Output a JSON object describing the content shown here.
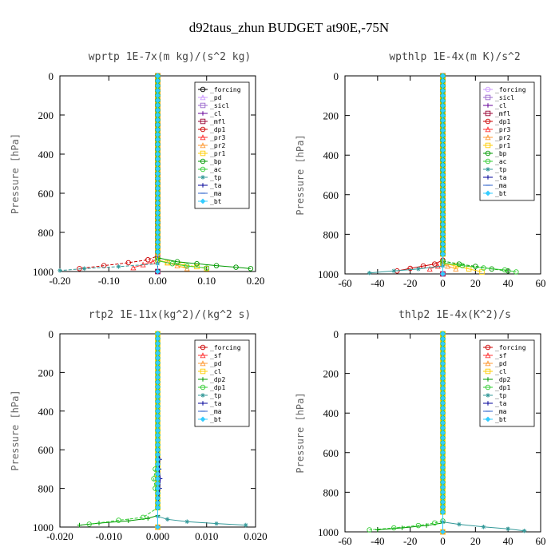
{
  "figure": {
    "title": "d92taus_zhun  BUDGET at90E,-75N"
  },
  "chart_data": [
    {
      "type": "line",
      "title": "wprtp  1E-7x(m kg)/(s^2 kg)",
      "ylabel": "Pressure [hPa]",
      "xlim": [
        -0.2,
        0.2
      ],
      "ylim": [
        1000,
        0
      ],
      "xticks": [
        "-0.20",
        "-0.10",
        "0.00",
        "0.10",
        "0.20"
      ],
      "yticks": [
        "0",
        "200",
        "400",
        "600",
        "800",
        "1000"
      ],
      "legend_location": "top-right",
      "grid": false,
      "series": [
        {
          "name": "_forcing",
          "color": "#000000",
          "marker": "circle",
          "x": [
            0,
            0,
            0,
            0,
            0
          ],
          "y": [
            0,
            250,
            500,
            750,
            1000
          ]
        },
        {
          "name": "_pd",
          "color": "#cc99ff",
          "marker": "triangle",
          "x": [
            0,
            0,
            0,
            0,
            0
          ],
          "y": [
            0,
            250,
            500,
            750,
            1000
          ]
        },
        {
          "name": "_sicl",
          "color": "#9966cc",
          "marker": "square",
          "x": [
            0,
            0,
            0,
            0,
            0
          ],
          "y": [
            0,
            250,
            500,
            750,
            1000
          ]
        },
        {
          "name": "_cl",
          "color": "#660099",
          "marker": "plus",
          "x": [
            0,
            0,
            0,
            0,
            0
          ],
          "y": [
            0,
            250,
            500,
            750,
            1000
          ]
        },
        {
          "name": "_mfl",
          "color": "#990033",
          "marker": "square",
          "x": [
            0,
            0,
            0,
            0,
            0
          ],
          "y": [
            0,
            250,
            500,
            750,
            1000
          ]
        },
        {
          "name": "_dp1",
          "color": "#cc0000",
          "marker": "circle",
          "x": [
            0,
            0,
            -0.02,
            -0.06,
            -0.11,
            -0.16
          ],
          "y": [
            0,
            920,
            940,
            955,
            970,
            985
          ]
        },
        {
          "name": "_pr3",
          "color": "#ff3333",
          "marker": "triangle",
          "x": [
            0,
            -0.01,
            -0.03,
            -0.05
          ],
          "y": [
            930,
            950,
            965,
            980
          ]
        },
        {
          "name": "_pr2",
          "color": "#ff9933",
          "marker": "triangle",
          "x": [
            0,
            0.02,
            0.04,
            0.06
          ],
          "y": [
            940,
            955,
            970,
            985
          ]
        },
        {
          "name": "_pr1",
          "color": "#ffcc00",
          "marker": "square",
          "x": [
            0,
            0.02,
            0.05,
            0.08,
            0.1
          ],
          "y": [
            940,
            955,
            965,
            975,
            985
          ]
        },
        {
          "name": "_bp",
          "color": "#009900",
          "marker": "circle",
          "x": [
            0,
            0.04,
            0.08,
            0.12,
            0.16,
            0.19
          ],
          "y": [
            930,
            950,
            960,
            970,
            978,
            985
          ]
        },
        {
          "name": "_ac",
          "color": "#33cc33",
          "marker": "circle",
          "x": [
            0,
            0.03,
            0.06,
            0.1
          ],
          "y": [
            945,
            960,
            972,
            982
          ]
        },
        {
          "name": "_tp",
          "color": "#339999",
          "marker": "star",
          "x": [
            0,
            -0.08,
            -0.15,
            -0.2
          ],
          "y": [
            960,
            975,
            985,
            995
          ]
        },
        {
          "name": "_ta",
          "color": "#000099",
          "marker": "plus",
          "x": [
            0,
            0,
            0,
            0
          ],
          "y": [
            0,
            500,
            900,
            1000
          ]
        },
        {
          "name": "_ma",
          "color": "#3366cc",
          "marker": "dash",
          "x": [
            0,
            0,
            0,
            0
          ],
          "y": [
            0,
            500,
            900,
            1000
          ]
        },
        {
          "name": "_bt",
          "color": "#33ccff",
          "marker": "diamond",
          "x": [
            0,
            0,
            0,
            0
          ],
          "y": [
            0,
            500,
            900,
            1000
          ]
        }
      ]
    },
    {
      "type": "line",
      "title": "wpthlp  1E-4x(m K)/s^2",
      "ylabel": "Pressure [hPa]",
      "xlim": [
        -60,
        60
      ],
      "ylim": [
        1000,
        0
      ],
      "xticks": [
        "-60",
        "-40",
        "-20",
        "0",
        "20",
        "40",
        "60"
      ],
      "yticks": [
        "0",
        "200",
        "400",
        "600",
        "800",
        "1000"
      ],
      "legend_location": "top-right",
      "grid": false,
      "series": [
        {
          "name": "_forcing",
          "color": "#cc99ff",
          "marker": "circle",
          "x": [
            0,
            0,
            0,
            0,
            0
          ],
          "y": [
            0,
            250,
            500,
            750,
            1000
          ]
        },
        {
          "name": "_sicl",
          "color": "#9966cc",
          "marker": "square",
          "x": [
            0,
            0,
            0,
            0,
            0
          ],
          "y": [
            0,
            250,
            500,
            750,
            1000
          ]
        },
        {
          "name": "_cl",
          "color": "#660099",
          "marker": "plus",
          "x": [
            0,
            0,
            0,
            0,
            0
          ],
          "y": [
            0,
            250,
            500,
            750,
            1000
          ]
        },
        {
          "name": "_mfl",
          "color": "#990033",
          "marker": "square",
          "x": [
            0,
            0,
            0,
            0,
            0
          ],
          "y": [
            0,
            250,
            500,
            750,
            1000
          ]
        },
        {
          "name": "_dp1",
          "color": "#cc0000",
          "marker": "circle",
          "x": [
            0,
            -5,
            -12,
            -20,
            -28
          ],
          "y": [
            930,
            950,
            960,
            972,
            985
          ]
        },
        {
          "name": "_pr3",
          "color": "#ff3333",
          "marker": "triangle",
          "x": [
            0,
            -3,
            -8
          ],
          "y": [
            945,
            960,
            975
          ]
        },
        {
          "name": "_pr2",
          "color": "#ff9933",
          "marker": "triangle",
          "x": [
            0,
            3,
            8
          ],
          "y": [
            945,
            960,
            975
          ]
        },
        {
          "name": "_pr1",
          "color": "#ffcc00",
          "marker": "square",
          "x": [
            0,
            8,
            16,
            24
          ],
          "y": [
            945,
            960,
            975,
            990
          ]
        },
        {
          "name": "_bp",
          "color": "#009900",
          "marker": "circle",
          "x": [
            0,
            10,
            20,
            30,
            40
          ],
          "y": [
            935,
            950,
            962,
            975,
            985
          ]
        },
        {
          "name": "_ac",
          "color": "#33cc33",
          "marker": "circle",
          "x": [
            0,
            12,
            25,
            38,
            45
          ],
          "y": [
            945,
            958,
            970,
            980,
            990
          ]
        },
        {
          "name": "_tp",
          "color": "#339999",
          "marker": "star",
          "x": [
            0,
            -15,
            -30,
            -45
          ],
          "y": [
            960,
            975,
            985,
            995
          ]
        },
        {
          "name": "_ta",
          "color": "#000099",
          "marker": "plus",
          "x": [
            0,
            0,
            0,
            0
          ],
          "y": [
            0,
            500,
            900,
            1000
          ]
        },
        {
          "name": "_ma",
          "color": "#3366cc",
          "marker": "dash",
          "x": [
            0,
            0,
            0,
            0
          ],
          "y": [
            0,
            500,
            900,
            1000
          ]
        },
        {
          "name": "_bt",
          "color": "#33ccff",
          "marker": "diamond",
          "x": [
            0,
            0,
            0,
            0
          ],
          "y": [
            0,
            500,
            900,
            1000
          ]
        }
      ]
    },
    {
      "type": "line",
      "title": "rtp2  1E-11x(kg^2)/(kg^2 s)",
      "ylabel": "Pressure [hPa]",
      "xlim": [
        -0.02,
        0.02
      ],
      "ylim": [
        1000,
        0
      ],
      "xticks": [
        "-0.020",
        "-0.010",
        "0.000",
        "0.010",
        "0.020"
      ],
      "yticks": [
        "0",
        "200",
        "400",
        "600",
        "800",
        "1000"
      ],
      "legend_location": "top-right",
      "grid": false,
      "series": [
        {
          "name": "_forcing",
          "color": "#cc0000",
          "marker": "circle",
          "x": [
            0,
            0,
            0,
            0,
            0
          ],
          "y": [
            0,
            250,
            500,
            750,
            1000
          ]
        },
        {
          "name": "_sf",
          "color": "#ff3333",
          "marker": "triangle",
          "x": [
            0,
            0,
            0,
            0,
            0
          ],
          "y": [
            0,
            250,
            500,
            750,
            1000
          ]
        },
        {
          "name": "_pd",
          "color": "#ff9933",
          "marker": "triangle",
          "x": [
            0,
            0,
            0,
            0
          ],
          "y": [
            0,
            500,
            900,
            1000
          ]
        },
        {
          "name": "_cl",
          "color": "#ffcc00",
          "marker": "square",
          "x": [
            0,
            0,
            0,
            0
          ],
          "y": [
            0,
            500,
            900,
            1000
          ]
        },
        {
          "name": "_dp2",
          "color": "#009900",
          "marker": "plus",
          "x": [
            0,
            -0.002,
            -0.006,
            -0.012,
            -0.016
          ],
          "y": [
            940,
            955,
            968,
            980,
            990
          ]
        },
        {
          "name": "_dp1",
          "color": "#33cc33",
          "marker": "circle",
          "x": [
            0,
            0,
            -0.0005,
            -0.0008,
            -0.0005,
            0,
            -0.003,
            -0.008,
            -0.014
          ],
          "y": [
            600,
            650,
            700,
            750,
            800,
            900,
            950,
            965,
            985
          ]
        },
        {
          "name": "_tp",
          "color": "#339999",
          "marker": "star",
          "x": [
            0,
            0.002,
            0.006,
            0.012,
            0.018
          ],
          "y": [
            945,
            960,
            972,
            982,
            990
          ]
        },
        {
          "name": "_ta",
          "color": "#000099",
          "marker": "plus",
          "x": [
            0,
            0.0004,
            0.0003,
            0.0005,
            0.0004,
            0
          ],
          "y": [
            600,
            650,
            700,
            750,
            800,
            900
          ]
        },
        {
          "name": "_ma",
          "color": "#3366cc",
          "marker": "dash",
          "x": [
            0,
            0,
            0,
            0
          ],
          "y": [
            0,
            500,
            900,
            1000
          ]
        },
        {
          "name": "_bt",
          "color": "#33ccff",
          "marker": "diamond",
          "x": [
            0,
            0,
            0,
            0
          ],
          "y": [
            0,
            500,
            900,
            1000
          ]
        }
      ]
    },
    {
      "type": "line",
      "title": "thlp2  1E-4x(K^2)/s",
      "ylabel": "Pressure [hPa]",
      "xlim": [
        -60,
        60
      ],
      "ylim": [
        1000,
        0
      ],
      "xticks": [
        "-60",
        "-40",
        "-20",
        "0",
        "20",
        "40",
        "60"
      ],
      "yticks": [
        "0",
        "200",
        "400",
        "600",
        "800",
        "1000"
      ],
      "legend_location": "top-right",
      "grid": false,
      "series": [
        {
          "name": "_forcing",
          "color": "#cc0000",
          "marker": "circle",
          "x": [
            0,
            0,
            0,
            0,
            0
          ],
          "y": [
            0,
            250,
            500,
            750,
            1000
          ]
        },
        {
          "name": "_sf",
          "color": "#ff3333",
          "marker": "triangle",
          "x": [
            0,
            0,
            0,
            0,
            0
          ],
          "y": [
            0,
            250,
            500,
            750,
            1000
          ]
        },
        {
          "name": "_pd",
          "color": "#ff9933",
          "marker": "triangle",
          "x": [
            0,
            0,
            0,
            0
          ],
          "y": [
            0,
            500,
            900,
            1000
          ]
        },
        {
          "name": "_cl",
          "color": "#ffcc00",
          "marker": "square",
          "x": [
            0,
            0,
            0,
            0
          ],
          "y": [
            0,
            500,
            900,
            1000
          ]
        },
        {
          "name": "_dp2",
          "color": "#009900",
          "marker": "plus",
          "x": [
            0,
            -10,
            -25,
            -40
          ],
          "y": [
            955,
            968,
            980,
            990
          ]
        },
        {
          "name": "_dp1",
          "color": "#33cc33",
          "marker": "circle",
          "x": [
            0,
            -5,
            -15,
            -30,
            -45
          ],
          "y": [
            945,
            955,
            968,
            980,
            990
          ]
        },
        {
          "name": "_tp",
          "color": "#339999",
          "marker": "star",
          "x": [
            0,
            10,
            25,
            40,
            50
          ],
          "y": [
            950,
            962,
            975,
            985,
            995
          ]
        },
        {
          "name": "_ta",
          "color": "#000099",
          "marker": "plus",
          "x": [
            0,
            0,
            0,
            0
          ],
          "y": [
            0,
            500,
            900,
            1000
          ]
        },
        {
          "name": "_ma",
          "color": "#3366cc",
          "marker": "dash",
          "x": [
            0,
            0,
            0,
            0
          ],
          "y": [
            0,
            500,
            900,
            1000
          ]
        },
        {
          "name": "_bt",
          "color": "#33ccff",
          "marker": "diamond",
          "x": [
            0,
            0,
            0,
            0
          ],
          "y": [
            0,
            500,
            900,
            1000
          ]
        }
      ]
    }
  ]
}
